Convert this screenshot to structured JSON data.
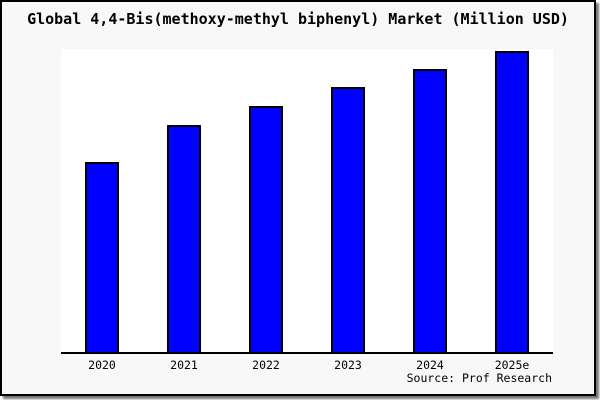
{
  "window": {
    "background": "#ffffff",
    "card_background": "#f8f8f8",
    "frame_border_color": "#000000",
    "frame_shadow_color": "#777777"
  },
  "chart": {
    "bar_fill_color": "#0000ff",
    "bar_border_color": "#000000",
    "axis_color": "#000000",
    "plot_background": "#ffffff"
  },
  "chart_data": {
    "type": "bar",
    "title": "Global 4,4-Bis(methoxy-methyl biphenyl) Market (Million USD)",
    "categories": [
      "2020",
      "2021",
      "2022",
      "2023",
      "2024",
      "2025e"
    ],
    "values": [
      63.1,
      75.2,
      81.5,
      87.8,
      93.9,
      100
    ],
    "value_note": "No y-axis scale is shown in the image; values are relative bar heights indexed to 2025e = 100",
    "xlabel": "",
    "ylabel": "",
    "ylim": [
      0,
      100.5
    ],
    "grid": false,
    "legend": false,
    "y_axis_ticks_visible": false,
    "source": "Source: Prof Research"
  }
}
